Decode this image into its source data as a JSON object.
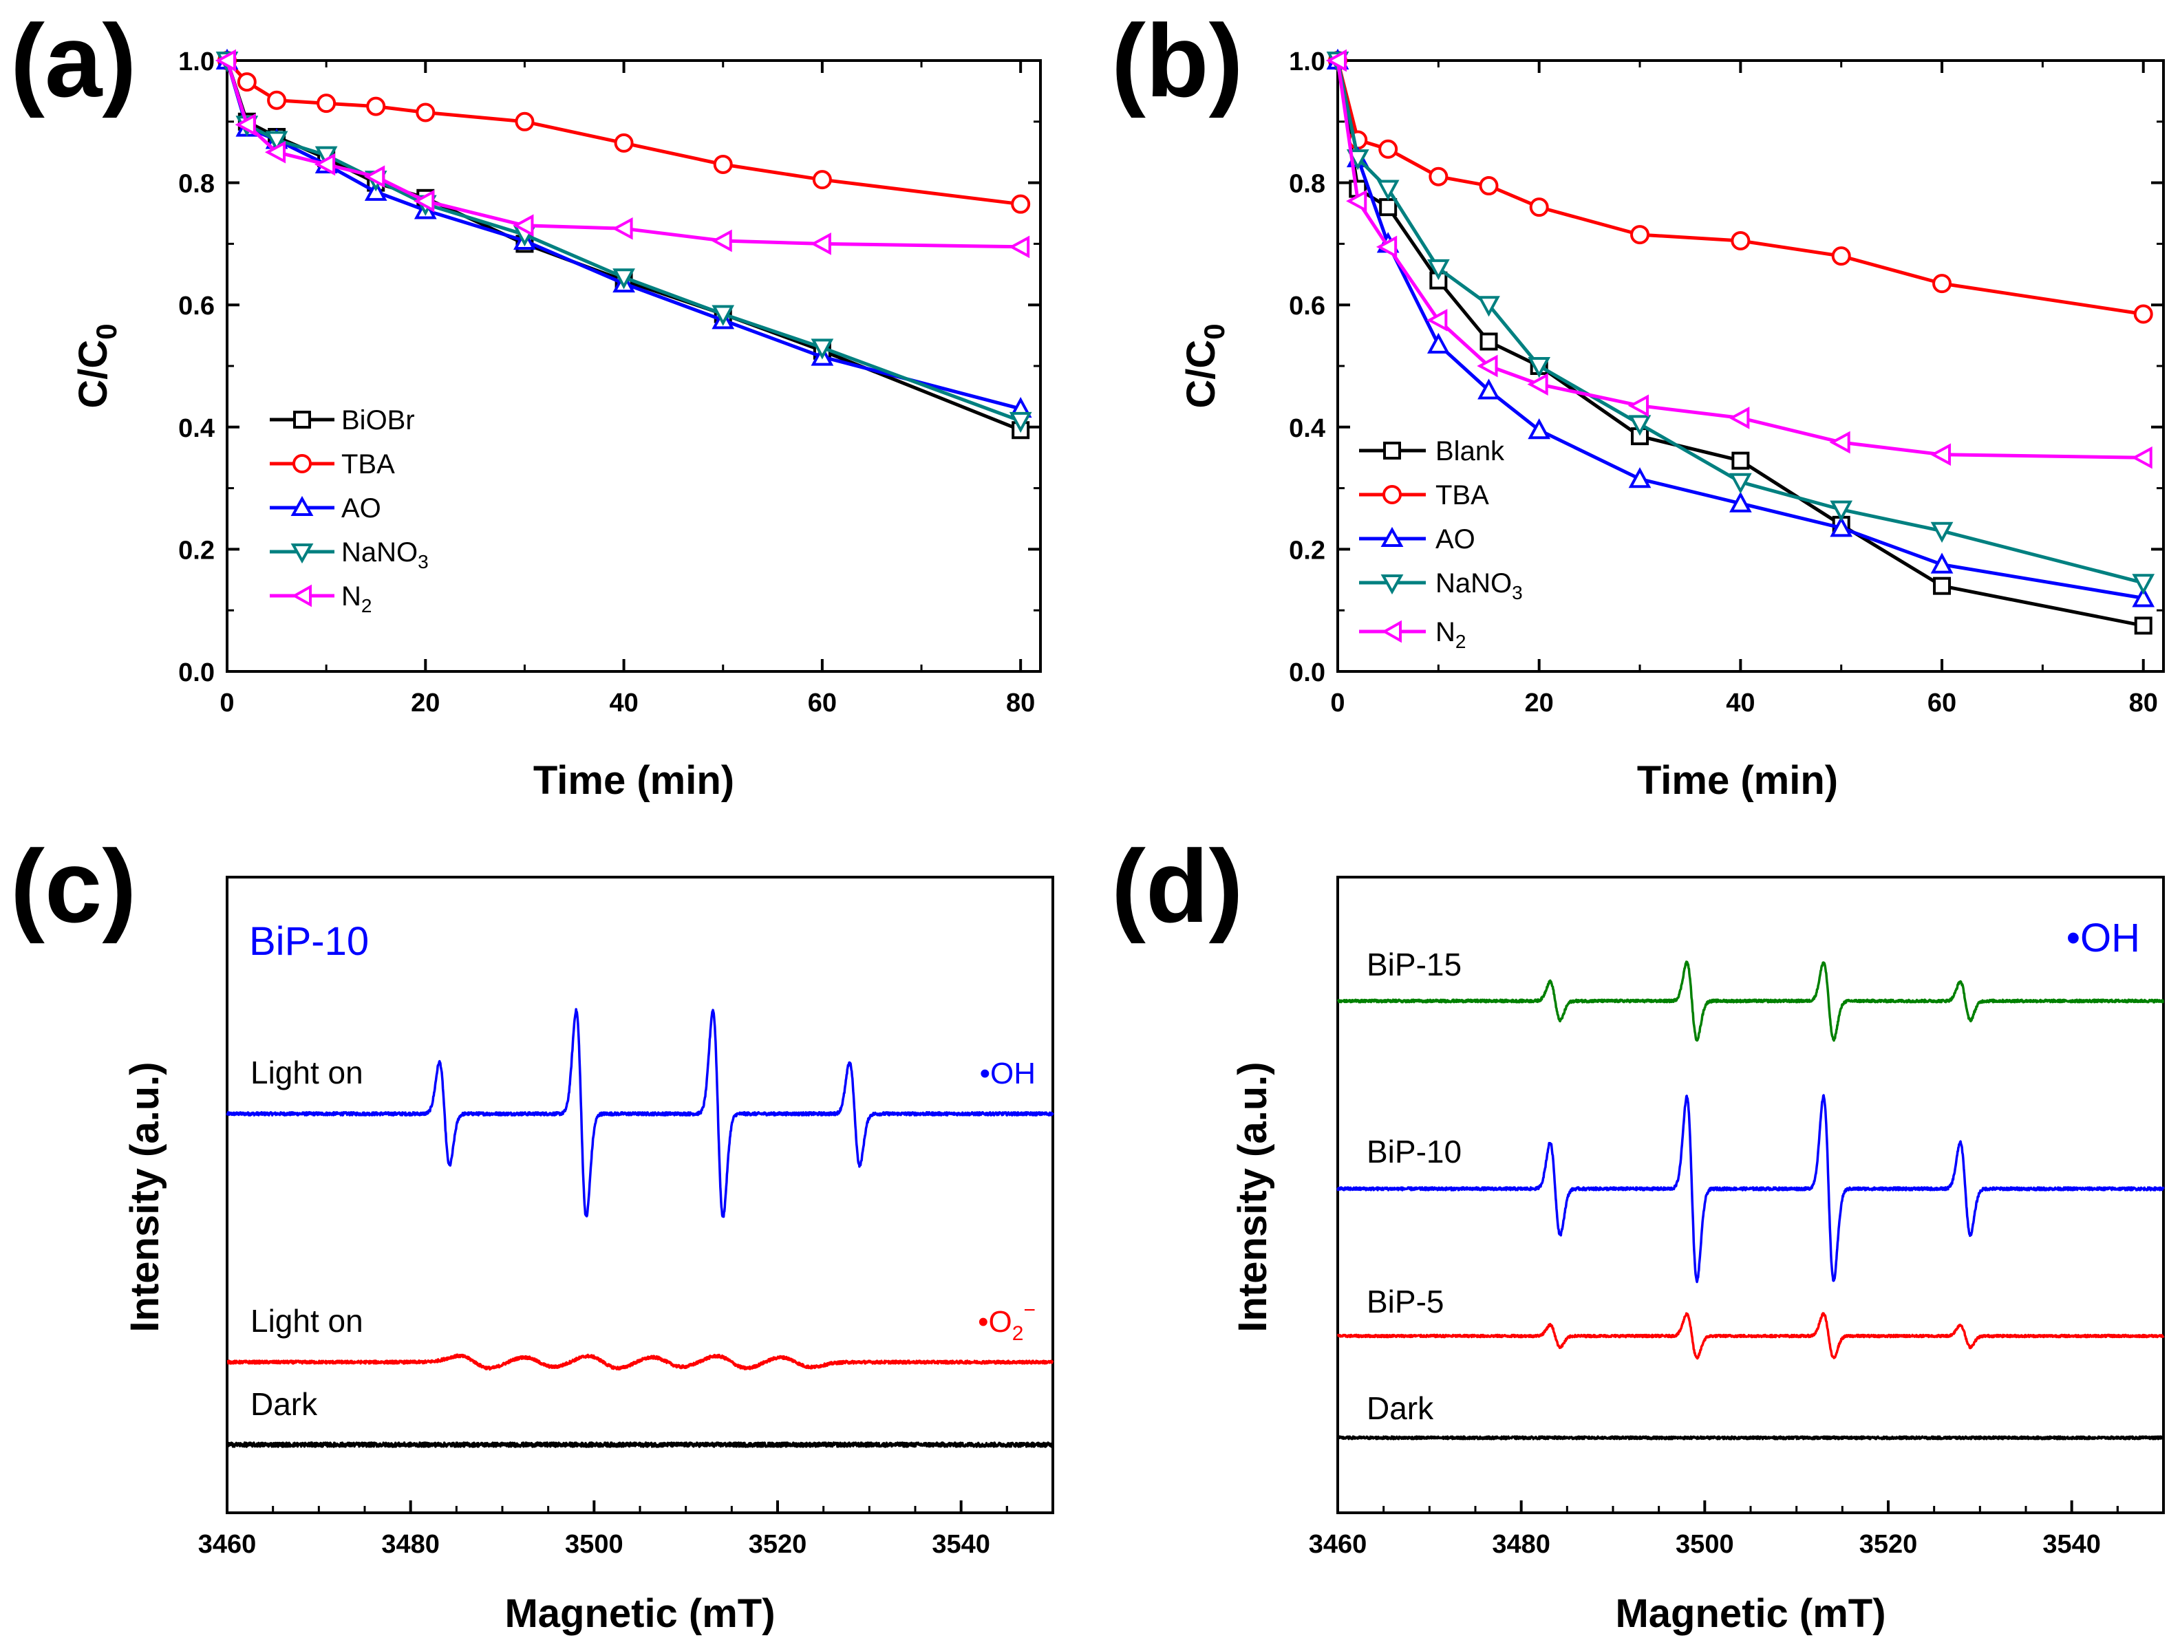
{
  "figure": {
    "panels": {
      "a": {
        "label": "(a)"
      },
      "b": {
        "label": "(b)"
      },
      "c": {
        "label": "(c)"
      },
      "d": {
        "label": "(d)"
      }
    }
  },
  "chart_data": [
    {
      "id": "a",
      "type": "line",
      "title": "",
      "xlabel": "Time (min)",
      "ylabel_main": "C/C",
      "ylabel_sub": "0",
      "xlim": [
        0,
        82
      ],
      "ylim": [
        0,
        1.0
      ],
      "xticks": [
        "0",
        "20",
        "40",
        "60",
        "80"
      ],
      "yticks": [
        "0.0",
        "0.2",
        "0.4",
        "0.6",
        "0.8",
        "1.0"
      ],
      "legend_position": "lower-left",
      "series": [
        {
          "name": "BiOBr",
          "label_main": "BiOBr",
          "color": "#000000",
          "marker": "square",
          "x": [
            0,
            2,
            5,
            10,
            15,
            20,
            30,
            40,
            50,
            60,
            80
          ],
          "y": [
            1.0,
            0.9,
            0.875,
            0.84,
            0.8,
            0.775,
            0.7,
            0.64,
            0.585,
            0.525,
            0.395
          ]
        },
        {
          "name": "TBA",
          "label_main": "TBA",
          "color": "#ff0000",
          "marker": "circle",
          "x": [
            0,
            2,
            5,
            10,
            15,
            20,
            30,
            40,
            50,
            60,
            80
          ],
          "y": [
            1.0,
            0.965,
            0.935,
            0.93,
            0.925,
            0.915,
            0.9,
            0.865,
            0.83,
            0.805,
            0.765
          ]
        },
        {
          "name": "AO",
          "label_main": "AO",
          "color": "#0000ff",
          "marker": "triangle-up",
          "x": [
            0,
            2,
            5,
            10,
            15,
            20,
            30,
            40,
            50,
            60,
            80
          ],
          "y": [
            1.0,
            0.89,
            0.87,
            0.83,
            0.785,
            0.755,
            0.705,
            0.635,
            0.575,
            0.515,
            0.43
          ]
        },
        {
          "name": "NaNO3",
          "label_main": "NaNO",
          "label_sub": "3",
          "color": "#008080",
          "marker": "triangle-down",
          "x": [
            0,
            2,
            5,
            10,
            15,
            20,
            30,
            40,
            50,
            60,
            80
          ],
          "y": [
            1.0,
            0.895,
            0.87,
            0.845,
            0.805,
            0.765,
            0.715,
            0.645,
            0.585,
            0.53,
            0.41
          ]
        },
        {
          "name": "N2",
          "label_main": "N",
          "label_sub": "2",
          "color": "#ff00ff",
          "marker": "triangle-left",
          "x": [
            0,
            2,
            5,
            10,
            15,
            20,
            30,
            40,
            50,
            60,
            80
          ],
          "y": [
            1.0,
            0.895,
            0.85,
            0.83,
            0.81,
            0.77,
            0.73,
            0.725,
            0.705,
            0.7,
            0.695
          ]
        }
      ]
    },
    {
      "id": "b",
      "type": "line",
      "title": "",
      "xlabel": "Time (min)",
      "ylabel_main": "C/C",
      "ylabel_sub": "0",
      "xlim": [
        0,
        82
      ],
      "ylim": [
        0,
        1.0
      ],
      "xticks": [
        "0",
        "20",
        "40",
        "60",
        "80"
      ],
      "yticks": [
        "0.0",
        "0.2",
        "0.4",
        "0.6",
        "0.8",
        "1.0"
      ],
      "legend_position": "lower-left",
      "series": [
        {
          "name": "Blank",
          "label_main": "Blank",
          "color": "#000000",
          "marker": "square",
          "x": [
            0,
            2,
            5,
            10,
            15,
            20,
            30,
            40,
            50,
            60,
            80
          ],
          "y": [
            1.0,
            0.79,
            0.76,
            0.64,
            0.54,
            0.5,
            0.385,
            0.345,
            0.24,
            0.14,
            0.075
          ]
        },
        {
          "name": "TBA",
          "label_main": "TBA",
          "color": "#ff0000",
          "marker": "circle",
          "x": [
            0,
            2,
            5,
            10,
            15,
            20,
            30,
            40,
            50,
            60,
            80
          ],
          "y": [
            1.0,
            0.87,
            0.855,
            0.81,
            0.795,
            0.76,
            0.715,
            0.705,
            0.68,
            0.635,
            0.585
          ]
        },
        {
          "name": "AO",
          "label_main": "AO",
          "color": "#0000ff",
          "marker": "triangle-up",
          "x": [
            0,
            2,
            5,
            10,
            15,
            20,
            30,
            40,
            50,
            60,
            80
          ],
          "y": [
            1.0,
            0.84,
            0.7,
            0.535,
            0.46,
            0.395,
            0.315,
            0.275,
            0.235,
            0.175,
            0.12
          ]
        },
        {
          "name": "NaNO3",
          "label_main": "NaNO",
          "label_sub": "3",
          "color": "#008080",
          "marker": "triangle-down",
          "x": [
            0,
            2,
            5,
            10,
            15,
            20,
            30,
            40,
            50,
            60,
            80
          ],
          "y": [
            1.0,
            0.84,
            0.79,
            0.66,
            0.6,
            0.5,
            0.405,
            0.31,
            0.265,
            0.23,
            0.145
          ]
        },
        {
          "name": "N2",
          "label_main": "N",
          "label_sub": "2",
          "color": "#ff00ff",
          "marker": "triangle-left",
          "x": [
            0,
            2,
            5,
            10,
            15,
            20,
            30,
            40,
            50,
            60,
            80
          ],
          "y": [
            1.0,
            0.77,
            0.695,
            0.575,
            0.5,
            0.47,
            0.435,
            0.415,
            0.375,
            0.355,
            0.35
          ]
        }
      ]
    },
    {
      "id": "c",
      "type": "line",
      "title": "BiP-10",
      "title_color": "#0000ff",
      "xlabel": "Magnetic (mT)",
      "ylabel": "Intensity (a.u.)",
      "xlim": [
        3460,
        3550
      ],
      "xticks": [
        "3460",
        "3480",
        "3500",
        "3520",
        "3540"
      ],
      "yticks": [],
      "peak_positions": [
        3483.7,
        3498.6,
        3513.5,
        3528.4
      ],
      "dmpo_oh_ratio": [
        1,
        2,
        2,
        1
      ],
      "traces": [
        {
          "name": "Light on",
          "label": "Light on",
          "tag": "•OH",
          "tag_color": "#0000ff",
          "color": "#0000ff",
          "kind": "dmpo-oh",
          "baseline": 0.0,
          "amplitude": 75,
          "noise": 2.2
        },
        {
          "name": "Light on",
          "label": "Light on",
          "tag_main": "•O",
          "tag_sub": "2",
          "tag_sup": "−",
          "tag_color": "#ff0000",
          "color": "#ff0000",
          "kind": "superoxide",
          "baseline": -0.45,
          "amplitude": 9,
          "noise": 2.0,
          "peak_centers": [
            3487,
            3494,
            3501,
            3508,
            3515,
            3522
          ]
        },
        {
          "name": "Dark",
          "label": "Dark",
          "color": "#000000",
          "kind": "flat",
          "baseline": -0.6,
          "amplitude": 0,
          "noise": 3.0
        }
      ]
    },
    {
      "id": "d",
      "type": "line",
      "title": "•OH",
      "title_color": "#0000ff",
      "xlabel": "Magnetic (mT)",
      "ylabel": "Intensity (a.u.)",
      "xlim": [
        3460,
        3550
      ],
      "xticks": [
        "3460",
        "3480",
        "3500",
        "3520",
        "3540"
      ],
      "yticks": [],
      "peak_positions": [
        3483.7,
        3498.6,
        3513.5,
        3528.4
      ],
      "dmpo_oh_ratio": [
        1,
        2,
        2,
        1
      ],
      "traces": [
        {
          "name": "BiP-15",
          "label": "BiP-15",
          "color": "#008000",
          "kind": "dmpo-oh",
          "amplitude": 28,
          "noise": 1.8
        },
        {
          "name": "BiP-10",
          "label": "BiP-10",
          "color": "#0000ff",
          "kind": "dmpo-oh",
          "amplitude": 67,
          "noise": 2.0
        },
        {
          "name": "BiP-5",
          "label": "BiP-5",
          "color": "#ff0000",
          "kind": "dmpo-oh",
          "amplitude": 16,
          "noise": 1.6
        },
        {
          "name": "Dark",
          "label": "Dark",
          "color": "#000000",
          "kind": "flat",
          "amplitude": 0,
          "noise": 1.8
        }
      ]
    }
  ]
}
